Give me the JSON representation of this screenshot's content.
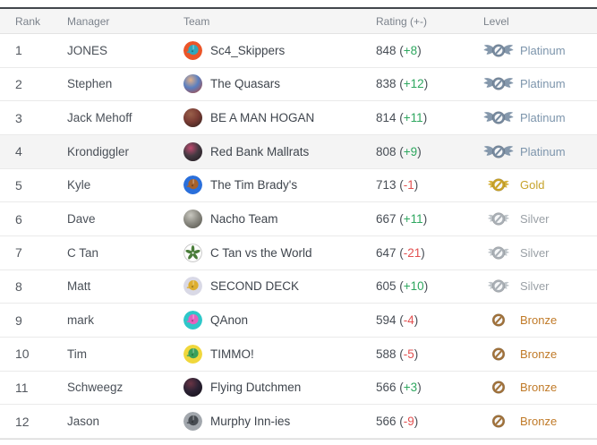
{
  "header": {
    "columns": [
      {
        "key": "rank",
        "label": "Rank"
      },
      {
        "key": "manager",
        "label": "Manager"
      },
      {
        "key": "team",
        "label": "Team"
      },
      {
        "key": "rating",
        "label": "Rating (+-)"
      },
      {
        "key": "level",
        "label": "Level"
      }
    ]
  },
  "format": {
    "open_paren": "(",
    "close_paren": ")"
  },
  "rating_colors": {
    "up": "#2ea75f",
    "down": "#e25050"
  },
  "levels": {
    "Platinum": {
      "text_color": "#7d95ac",
      "badge_color": "#76899e",
      "wing_color": "#8598ac",
      "wings": "large"
    },
    "Gold": {
      "text_color": "#c7a42c",
      "badge_color": "#c9a227",
      "wing_color": "#d6b33e",
      "wings": "small"
    },
    "Silver": {
      "text_color": "#9aa0a6",
      "badge_color": "#a9afb5",
      "wing_color": "#bfc5ca",
      "wings": "small"
    },
    "Bronze": {
      "text_color": "#c07a28",
      "badge_color": "#a0713a",
      "wing_color": "",
      "wings": "none"
    }
  },
  "rows": [
    {
      "rank": "1",
      "manager": "JONES",
      "team": "Sc4_Skippers",
      "rating": "848",
      "change": "+8",
      "direction": "up",
      "level": "Platinum",
      "highlight": false,
      "avatar": {
        "type": "helmet",
        "bg": "#eb5528",
        "fg": "#2fa8bc"
      }
    },
    {
      "rank": "2",
      "manager": "Stephen",
      "team": "The Quasars",
      "rating": "838",
      "change": "+12",
      "direction": "up",
      "level": "Platinum",
      "highlight": false,
      "avatar": {
        "type": "photo",
        "colors": [
          "#5a7fc0",
          "#b0483e",
          "#e0b08a"
        ]
      }
    },
    {
      "rank": "3",
      "manager": "Jack Mehoff",
      "team": "BE A MAN HOGAN",
      "rating": "814",
      "change": "+11",
      "direction": "up",
      "level": "Platinum",
      "highlight": false,
      "avatar": {
        "type": "photo",
        "colors": [
          "#7a3c34",
          "#33221e",
          "#99604a"
        ]
      }
    },
    {
      "rank": "4",
      "manager": "Krondiggler",
      "team": "Red Bank Mallrats",
      "rating": "808",
      "change": "+9",
      "direction": "up",
      "level": "Platinum",
      "highlight": true,
      "avatar": {
        "type": "photo",
        "colors": [
          "#453a42",
          "#221a20",
          "#c04a70"
        ]
      }
    },
    {
      "rank": "5",
      "manager": "Kyle",
      "team": "The Tim Brady's",
      "rating": "713",
      "change": "-1",
      "direction": "down",
      "level": "Gold",
      "highlight": false,
      "avatar": {
        "type": "helmet",
        "bg": "#2a6fdb",
        "fg": "#a8622a"
      }
    },
    {
      "rank": "6",
      "manager": "Dave",
      "team": "Nacho Team",
      "rating": "667",
      "change": "+11",
      "direction": "up",
      "level": "Silver",
      "highlight": false,
      "avatar": {
        "type": "photo",
        "colors": [
          "#8d8c84",
          "#55544c",
          "#c9c8c0"
        ]
      }
    },
    {
      "rank": "7",
      "manager": "C Tan",
      "team": "C Tan vs the World",
      "rating": "647",
      "change": "-21",
      "direction": "down",
      "level": "Silver",
      "highlight": false,
      "avatar": {
        "type": "leaf",
        "bg": "#ffffff",
        "fg": "#4a7d3a",
        "border": "#c5c5c5"
      }
    },
    {
      "rank": "8",
      "manager": "Matt",
      "team": "SECOND DECK",
      "rating": "605",
      "change": "+10",
      "direction": "up",
      "level": "Silver",
      "highlight": false,
      "avatar": {
        "type": "helmet",
        "bg": "#d9d9e6",
        "fg": "#ddae2f"
      }
    },
    {
      "rank": "9",
      "manager": "mark",
      "team": "QAnon",
      "rating": "594",
      "change": "-4",
      "direction": "down",
      "level": "Bronze",
      "highlight": false,
      "avatar": {
        "type": "helmet",
        "bg": "#2ec7c9",
        "fg": "#e561bd"
      }
    },
    {
      "rank": "10",
      "manager": "Tim",
      "team": "TIMMO!",
      "rating": "588",
      "change": "-5",
      "direction": "down",
      "level": "Bronze",
      "highlight": false,
      "avatar": {
        "type": "helmet",
        "bg": "#f0d73c",
        "fg": "#3ba05c"
      }
    },
    {
      "rank": "11",
      "manager": "Schweegz",
      "team": "Flying Dutchmen",
      "rating": "566",
      "change": "+3",
      "direction": "up",
      "level": "Bronze",
      "highlight": false,
      "avatar": {
        "type": "photo",
        "colors": [
          "#2c2234",
          "#140f18",
          "#6a3444"
        ]
      }
    },
    {
      "rank": "12",
      "manager": "Jason",
      "team": "Murphy Inn-ies",
      "rating": "566",
      "change": "-9",
      "direction": "down",
      "level": "Bronze",
      "highlight": false,
      "avatar": {
        "type": "helmet",
        "bg": "#a2a7ad",
        "fg": "#474c52"
      }
    }
  ]
}
